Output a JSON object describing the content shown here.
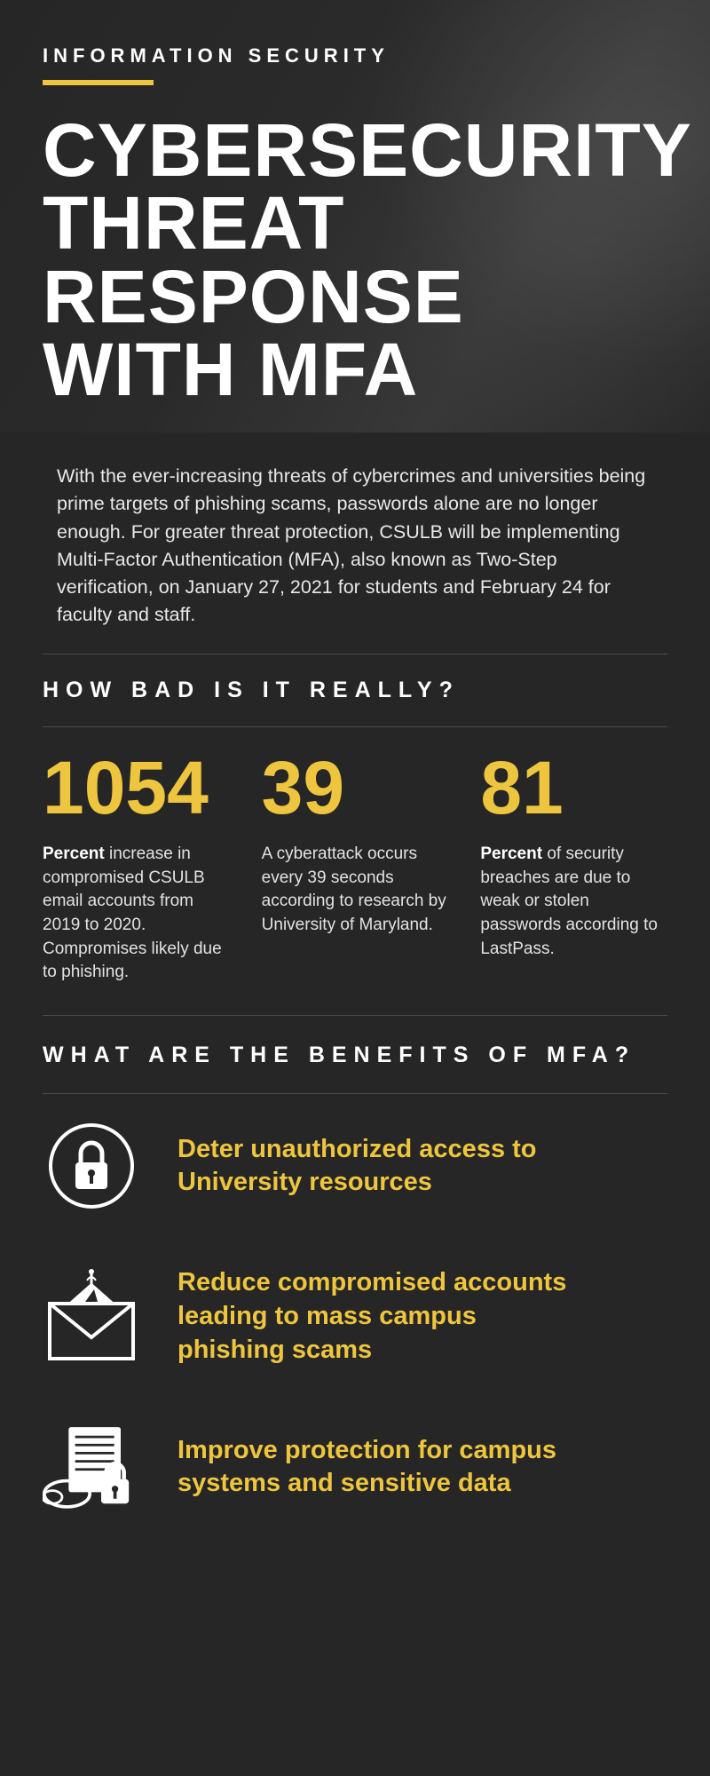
{
  "colors": {
    "background": "#262626",
    "text": "#ffffff",
    "text_muted": "#e2e2e2",
    "accent_yellow": "#eec53f",
    "divider": "#4a4a4a"
  },
  "header": {
    "eyebrow": "INFORMATION SECURITY",
    "title": "CYBERSECURITY THREAT RESPONSE WITH MFA",
    "underline_color": "#eec53f"
  },
  "intro": {
    "text": "With the ever-increasing threats of cybercrimes and universities being prime targets of phishing scams, passwords alone are no longer enough.  For greater threat protection, CSULB will be implementing Multi-Factor Authentication (MFA), also known as Two-Step verification, on January 27, 2021 for students and February 24 for faculty and staff."
  },
  "section1": {
    "heading": "HOW BAD IS IT REALLY?",
    "stats": [
      {
        "number": "1054",
        "bold_prefix": "Percent",
        "text": " increase in  compromised CSULB email accounts from 2019 to 2020. Compromises likely due to phishing."
      },
      {
        "number": "39",
        "bold_prefix": "",
        "text": "A cyberattack occurs every 39 seconds according to research by University of Maryland."
      },
      {
        "number": "81",
        "bold_prefix": "Percent",
        "text": " of security breaches are due to weak or stolen passwords according to LastPass."
      }
    ],
    "number_color": "#eec53f",
    "number_fontsize": 84
  },
  "section2": {
    "heading": "WHAT ARE THE BENEFITS OF MFA?",
    "benefit_text_color": "#eec53f",
    "benefits": [
      {
        "icon": "lock-circle-icon",
        "text": "Deter unauthorized access to University resources"
      },
      {
        "icon": "phishing-envelope-icon",
        "text": "Reduce compromised accounts leading to mass campus phishing scams"
      },
      {
        "icon": "secure-docs-icon",
        "text": "Improve protection for campus systems and sensitive data"
      }
    ]
  }
}
